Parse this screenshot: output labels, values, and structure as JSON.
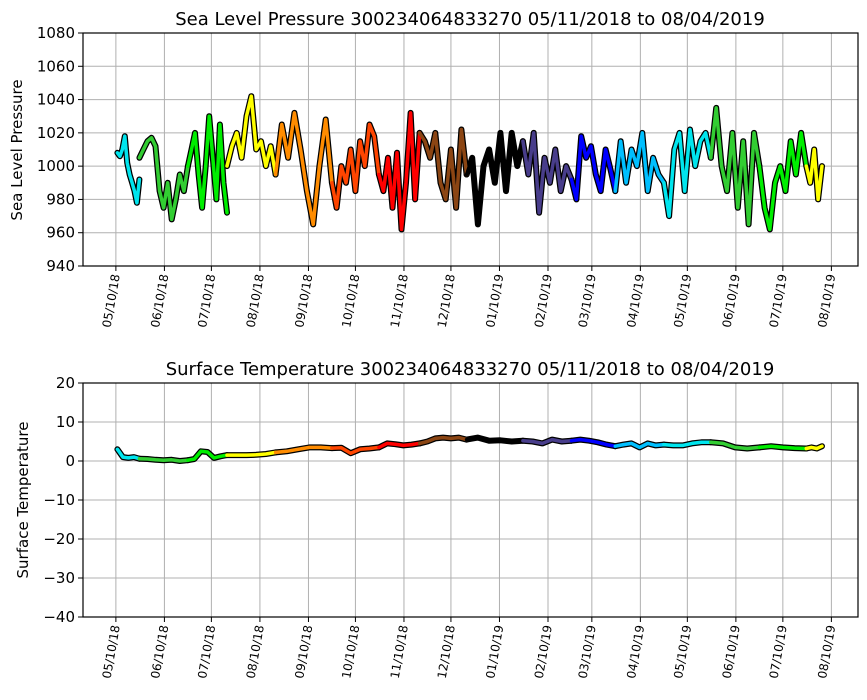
{
  "chart_data": [
    {
      "type": "line",
      "title": "Sea Level Pressure 300234064833270  05/11/2018 to 08/04/2019",
      "xlabel": "",
      "ylabel": "Sea Level Pressure",
      "ylim": [
        940,
        1080
      ],
      "yticks": [
        940,
        960,
        980,
        1000,
        1020,
        1040,
        1060,
        1080
      ],
      "xlim": [
        "2018-04-19",
        "2019-08-27"
      ],
      "xticks": [
        "05/10/18",
        "06/10/18",
        "07/10/18",
        "08/10/18",
        "09/10/18",
        "10/10/18",
        "11/10/18",
        "12/10/18",
        "01/10/19",
        "02/10/19",
        "03/10/19",
        "04/10/19",
        "05/10/19",
        "06/10/19",
        "07/10/19",
        "08/10/19"
      ],
      "grid": true,
      "segments": [
        {
          "start": "2018-05-11",
          "end": "2018-05-25",
          "color": "#00e5ee",
          "values": [
            1008,
            1006,
            1010,
            1018,
            1002,
            995,
            990,
            985,
            978,
            992
          ]
        },
        {
          "start": "2018-05-25",
          "end": "2018-06-25",
          "color": "#32cd32",
          "values": [
            1005,
            1010,
            1015,
            1017,
            1012,
            985,
            975,
            990,
            968,
            980,
            995,
            985,
            1000
          ]
        },
        {
          "start": "2018-06-25",
          "end": "2018-07-20",
          "color": "#00ee00",
          "values": [
            1000,
            1010,
            1020,
            995,
            975,
            1000,
            1030,
            1005,
            980,
            1025,
            990,
            972
          ]
        },
        {
          "start": "2018-07-20",
          "end": "2018-08-20",
          "color": "#ffff00",
          "values": [
            1000,
            1012,
            1020,
            1005,
            1030,
            1042,
            1010,
            1015,
            1000,
            1012,
            995
          ]
        },
        {
          "start": "2018-08-20",
          "end": "2018-09-25",
          "color": "#ff8c00",
          "values": [
            995,
            1025,
            1005,
            1032,
            1010,
            985,
            965,
            1000,
            1028,
            990
          ]
        },
        {
          "start": "2018-09-25",
          "end": "2018-10-25",
          "color": "#ff4500",
          "values": [
            990,
            975,
            1000,
            990,
            1010,
            985,
            1015,
            1000,
            1025,
            1018,
            995
          ]
        },
        {
          "start": "2018-10-25",
          "end": "2018-11-20",
          "color": "#ff0000",
          "values": [
            995,
            985,
            1005,
            975,
            1008,
            962,
            990,
            1032,
            980,
            1020
          ]
        },
        {
          "start": "2018-11-20",
          "end": "2018-12-20",
          "color": "#8b4513",
          "values": [
            1020,
            1015,
            1005,
            1020,
            990,
            980,
            1010,
            975,
            1022,
            995
          ]
        },
        {
          "start": "2018-12-20",
          "end": "2019-01-25",
          "color": "#000000",
          "values": [
            995,
            1005,
            965,
            1000,
            1010,
            990,
            1020,
            985,
            1020,
            1000,
            1015
          ]
        },
        {
          "start": "2019-01-25",
          "end": "2019-02-25",
          "color": "#483d8b",
          "values": [
            1015,
            995,
            1020,
            972,
            1005,
            990,
            1010,
            985,
            1000,
            992
          ]
        },
        {
          "start": "2019-02-25",
          "end": "2019-03-25",
          "color": "#0000ff",
          "values": [
            992,
            980,
            1018,
            1005,
            1012,
            995,
            985,
            1010,
            998,
            985
          ]
        },
        {
          "start": "2019-03-25",
          "end": "2019-04-25",
          "color": "#00bfff",
          "values": [
            985,
            1015,
            990,
            1010,
            1000,
            1020,
            985,
            1005,
            995,
            990
          ]
        },
        {
          "start": "2019-04-25",
          "end": "2019-05-25",
          "color": "#00e5ee",
          "values": [
            990,
            970,
            1010,
            1020,
            985,
            1022,
            1000,
            1015,
            1020,
            1005
          ]
        },
        {
          "start": "2019-05-25",
          "end": "2019-06-25",
          "color": "#32cd32",
          "values": [
            1005,
            1035,
            1000,
            985,
            1020,
            975,
            1015,
            965,
            1020,
            1000
          ]
        },
        {
          "start": "2019-06-25",
          "end": "2019-07-25",
          "color": "#00ee00",
          "values": [
            1000,
            975,
            962,
            990,
            1000,
            985,
            1015,
            995,
            1020,
            1000
          ]
        },
        {
          "start": "2019-07-25",
          "end": "2019-08-04",
          "color": "#ffff00",
          "values": [
            1000,
            990,
            1010,
            980,
            1000
          ]
        }
      ]
    },
    {
      "type": "line",
      "title": "Surface Temperature 300234064833270  05/11/2018 to 08/04/2019",
      "xlabel": "",
      "ylabel": "Surface Temperature",
      "ylim": [
        -40,
        20
      ],
      "yticks": [
        -40,
        -30,
        -20,
        -10,
        0,
        10,
        20
      ],
      "xlim": [
        "2018-04-19",
        "2019-08-27"
      ],
      "xticks": [
        "05/10/18",
        "06/10/18",
        "07/10/18",
        "08/10/18",
        "09/10/18",
        "10/10/18",
        "11/10/18",
        "12/10/18",
        "01/10/19",
        "02/10/19",
        "03/10/19",
        "04/10/19",
        "05/10/19",
        "06/10/19",
        "07/10/19",
        "08/10/19"
      ],
      "grid": true,
      "segments": [
        {
          "start": "2018-05-11",
          "end": "2018-05-25",
          "color": "#00e5ee",
          "values": [
            3,
            1,
            0.8,
            1,
            0.6
          ]
        },
        {
          "start": "2018-05-25",
          "end": "2018-06-25",
          "color": "#32cd32",
          "values": [
            0.6,
            0.5,
            0.3,
            0.2,
            0.3,
            0,
            0.2
          ]
        },
        {
          "start": "2018-06-25",
          "end": "2018-07-20",
          "color": "#00ee00",
          "values": [
            0.2,
            0.5,
            2.5,
            2.3,
            0.8,
            1.2,
            1.5
          ]
        },
        {
          "start": "2018-07-20",
          "end": "2018-08-20",
          "color": "#ffff00",
          "values": [
            1.5,
            1.5,
            1.5,
            1.6,
            1.8,
            2.2
          ]
        },
        {
          "start": "2018-08-20",
          "end": "2018-09-25",
          "color": "#ff8c00",
          "values": [
            2.2,
            2.5,
            3,
            3.5,
            3.5,
            3.3
          ]
        },
        {
          "start": "2018-09-25",
          "end": "2018-10-25",
          "color": "#ff4500",
          "values": [
            3.3,
            3.4,
            2,
            3,
            3.2,
            3.5
          ]
        },
        {
          "start": "2018-10-25",
          "end": "2018-11-20",
          "color": "#ff0000",
          "values": [
            3.5,
            4.5,
            4.3,
            4,
            4.2,
            4.5
          ]
        },
        {
          "start": "2018-11-20",
          "end": "2018-12-20",
          "color": "#8b4513",
          "values": [
            4.5,
            5,
            5.8,
            6,
            5.8,
            6,
            5.5
          ]
        },
        {
          "start": "2018-12-20",
          "end": "2019-01-25",
          "color": "#000000",
          "values": [
            5.5,
            6,
            5.2,
            5.3,
            5,
            5.2
          ]
        },
        {
          "start": "2019-01-25",
          "end": "2019-02-25",
          "color": "#483d8b",
          "values": [
            5.2,
            5,
            4.5,
            5.5,
            5,
            5.2
          ]
        },
        {
          "start": "2019-02-25",
          "end": "2019-03-25",
          "color": "#0000ff",
          "values": [
            5.2,
            5.5,
            5.2,
            4.8,
            4.2,
            3.8
          ]
        },
        {
          "start": "2019-03-25",
          "end": "2019-04-25",
          "color": "#00bfff",
          "values": [
            3.8,
            4.2,
            4.5,
            3.5,
            4.5,
            4,
            4.2
          ]
        },
        {
          "start": "2019-04-25",
          "end": "2019-05-25",
          "color": "#00e5ee",
          "values": [
            4.2,
            4,
            4,
            4.5,
            4.8,
            4.8
          ]
        },
        {
          "start": "2019-05-25",
          "end": "2019-06-25",
          "color": "#32cd32",
          "values": [
            4.8,
            4.5,
            3.5,
            3.2,
            3.5
          ]
        },
        {
          "start": "2019-06-25",
          "end": "2019-07-25",
          "color": "#00ee00",
          "values": [
            3.5,
            3.8,
            3.5,
            3.3,
            3.2
          ]
        },
        {
          "start": "2019-07-25",
          "end": "2019-08-04",
          "color": "#ffff00",
          "values": [
            3.2,
            3.5,
            3.2,
            3.8
          ]
        }
      ]
    }
  ]
}
